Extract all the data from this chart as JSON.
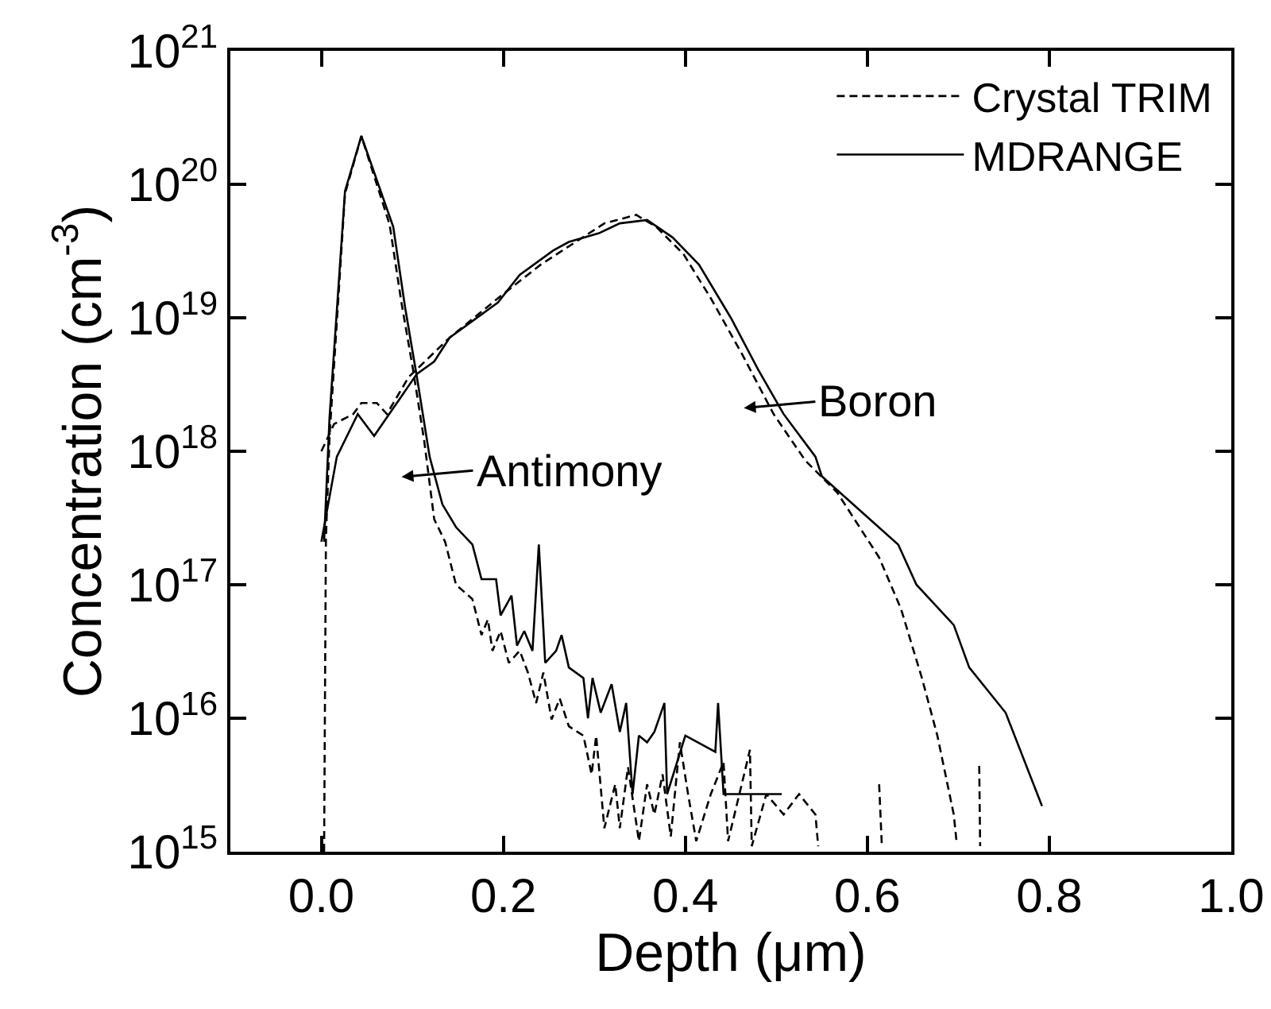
{
  "chart_data": {
    "type": "line",
    "xlabel": "Depth (μm)",
    "ylabel": "Concentration (cm$^{-3}$)",
    "log": "y",
    "legend": "top right",
    "marker": "none",
    "xlim": [
      -0.1,
      1.0
    ],
    "xticks": [
      {
        "value": 0,
        "label": "0.0"
      },
      {
        "value": 0.2,
        "label": "0.2"
      },
      {
        "value": 0.4,
        "label": "0.4"
      },
      {
        "value": 0.6,
        "label": "0.6"
      },
      {
        "value": 0.8,
        "label": "0.8"
      },
      {
        "value": 1.0,
        "label": "1.0"
      }
    ],
    "ylim": [
      1000000000000000.0,
      1e+21
    ],
    "yticks": [
      {
        "value": 1000000000000000.0,
        "label": "10$^{15}$"
      },
      {
        "value": 1e+16,
        "label": "10$^{16}$"
      },
      {
        "value": 1e+17,
        "label": "10$^{17}$"
      },
      {
        "value": 1e+18,
        "label": "10$^{18}$"
      },
      {
        "value": 1e+19,
        "label": "10$^{19}$"
      },
      {
        "value": 1e+20,
        "label": "10$^{20}$"
      },
      {
        "value": 1e+21,
        "label": "10$^{21}$"
      }
    ],
    "series": [
      {
        "name": "Crystal TRIM",
        "color": "#000000",
        "line_style": "dashed",
        "x": [
          0.003,
          0.005,
          0.009,
          0.026,
          0.044,
          0.075,
          0.088,
          0.101,
          0.113,
          0.124,
          0.136,
          0.148,
          0.166,
          0.176,
          0.183,
          0.188,
          0.197,
          0.206,
          0.218,
          0.227,
          0.236,
          0.244,
          0.253,
          0.262,
          0.272,
          0.288,
          0.297,
          0.302,
          0.311,
          0.323,
          0.328,
          0.337,
          0.349,
          0.358,
          0.366,
          0.375,
          0.384,
          0.394,
          0.403,
          0.412,
          0.428,
          0.442,
          0.447,
          0.462,
          0.471,
          0.473,
          0.489,
          0.508,
          0.525,
          0.543,
          0.546,
          0.58,
          0.613,
          0.616,
          0.7,
          0.723,
          0.724
        ],
        "values": [
          1000000000000000.0,
          2.2e+17,
          1.3e+18,
          8.5e+19,
          2.3e+20,
          5e+19,
          1.3e+19,
          4e+18,
          1.2e+18,
          3.1e+17,
          2.1e+17,
          1e+17,
          7.8e+16,
          4.2e+16,
          5.5e+16,
          3.2e+16,
          4.5e+16,
          2.6e+16,
          3.2e+16,
          2.2e+16,
          1.3e+16,
          2.2e+16,
          9800000000000000.0,
          1.4e+16,
          8700000000000000.0,
          7400000000000000.0,
          3800000000000000.0,
          7400000000000000.0,
          1500000000000000.0,
          3200000000000000.0,
          1500000000000000.0,
          4300000000000000.0,
          1200000000000000.0,
          3200000000000000.0,
          1900000000000000.0,
          3800000000000000.0,
          1300000000000000.0,
          6600000000000000.0,
          2700000000000000.0,
          1200000000000000.0,
          2700000000000000.0,
          4700000000000000.0,
          1200000000000000.0,
          3200000000000000.0,
          5800000000000000.0,
          1100000000000000.0,
          2700000000000000.0,
          1900000000000000.0,
          2700000000000000.0,
          1900000000000000.0,
          1100000000000000.0,
          null,
          3200000000000000.0,
          1100000000000000.0,
          null,
          4400000000000000.0,
          1100000000000000.0
        ]
      },
      {
        "name": "MDRANGE",
        "color": "#000000",
        "line_style": "solid",
        "x": [
          0.003,
          0.009,
          0.026,
          0.044,
          0.079,
          0.092,
          0.105,
          0.119,
          0.133,
          0.148,
          0.166,
          0.176,
          0.192,
          0.197,
          0.209,
          0.215,
          0.223,
          0.232,
          0.239,
          0.246,
          0.258,
          0.264,
          0.272,
          0.288,
          0.293,
          0.298,
          0.307,
          0.319,
          0.328,
          0.335,
          0.342,
          0.349,
          0.358,
          0.366,
          0.377,
          0.38,
          0.4,
          0.433,
          0.436,
          0.442,
          0.489,
          0.506
        ],
        "values": [
          2.1e+17,
          1.8e+18,
          8.9e+19,
          2.3e+20,
          4.8e+19,
          1.2e+19,
          3.6e+18,
          9.1e+17,
          4e+17,
          2.7e+17,
          2e+17,
          1.1e+17,
          1.1e+17,
          5.9e+16,
          8.3e+16,
          3.5e+16,
          4.5e+16,
          3.2e+16,
          2e+17,
          2.6e+16,
          3.2e+16,
          4.2e+16,
          2.4e+16,
          2e+16,
          1e+16,
          2e+16,
          1.1e+16,
          1.8e+16,
          7900000000000000.0,
          1.3e+16,
          2700000000000000.0,
          7400000000000000.0,
          6600000000000000.0,
          7900000000000000.0,
          1.3e+16,
          2700000000000000.0,
          7400000000000000.0,
          5600000000000000.0,
          1.3e+16,
          2700000000000000.0,
          2700000000000000.0,
          2700000000000000.0
        ]
      },
      {
        "color": "#000000",
        "line_style": "dashed",
        "x": [
          0.0,
          0.014,
          0.035,
          0.044,
          0.061,
          0.072,
          0.096,
          0.141,
          0.194,
          0.241,
          0.311,
          0.346,
          0.368,
          0.398,
          0.428,
          0.462,
          0.497,
          0.532,
          0.567,
          0.613,
          0.637,
          0.66,
          0.677,
          0.695,
          0.698
        ],
        "values": [
          1e+18,
          1.6e+18,
          1.9e+18,
          2.3e+18,
          2.3e+18,
          1.9e+18,
          3.6e+18,
          7.1e+18,
          1.4e+19,
          2.5e+19,
          5.1e+19,
          5.9e+19,
          4.8e+19,
          3e+19,
          1.4e+19,
          5.4e+18,
          1.9e+18,
          8.5e+17,
          4.9e+17,
          1.6e+17,
          6.6e+16,
          2e+16,
          7400000000000000.0,
          1900000000000000.0,
          1200000000000000.0
        ]
      },
      {
        "color": "#000000",
        "line_style": "solid",
        "x": [
          0.0,
          0.017,
          0.04,
          0.058,
          0.079,
          0.105,
          0.124,
          0.141,
          0.194,
          0.218,
          0.255,
          0.272,
          0.305,
          0.328,
          0.358,
          0.386,
          0.415,
          0.45,
          0.48,
          0.508,
          0.543,
          0.55,
          0.59,
          0.634,
          0.654,
          0.695,
          0.712,
          0.752,
          0.792
        ],
        "values": [
          2.1e+17,
          9.1e+17,
          1.9e+18,
          1.3e+18,
          2.1e+18,
          3.8e+18,
          4.7e+18,
          7.1e+18,
          1.3e+19,
          2.1e+19,
          3.2e+19,
          3.7e+19,
          4.3e+19,
          5.1e+19,
          5.4e+19,
          4e+19,
          2.5e+19,
          1e+19,
          4.1e+18,
          1.9e+18,
          9.1e+17,
          6.5e+17,
          3.7e+17,
          2e+17,
          1e+17,
          5e+16,
          2.4e+16,
          1.1e+16,
          2200000000000000.0
        ]
      }
    ],
    "annotations": [
      "Antimony",
      "Boron"
    ]
  }
}
